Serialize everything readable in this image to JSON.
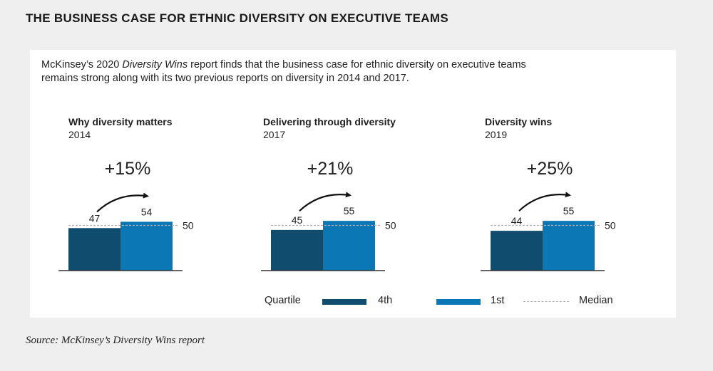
{
  "title": "THE BUSINESS CASE FOR ETHNIC DIVERSITY ON EXECUTIVE TEAMS",
  "intro": {
    "prefix": "McKinsey’s 2020 ",
    "report": "Diversity Wins",
    "suffix": " report finds that the business case for ethnic diversity on executive teams remains strong along with its two previous reports on diversity in 2014 and 2017."
  },
  "source": "Source: McKinsey’s Diversity Wins report",
  "legend": {
    "label": "Quartile",
    "q4": "4th",
    "q1": "1st",
    "median": "Median"
  },
  "colors": {
    "q4": "#0f4c6e",
    "q1": "#0b77b5",
    "median": "#b0b0b0",
    "axis": "#333333"
  },
  "chart_data": [
    {
      "type": "bar",
      "title": "Why diversity matters",
      "subtitle": "2014",
      "categories": [
        "4th",
        "1st"
      ],
      "values": [
        47,
        54
      ],
      "median": 50,
      "median_label": "50",
      "uplift": "+15%"
    },
    {
      "type": "bar",
      "title": "Delivering through diversity",
      "subtitle": "2017",
      "categories": [
        "4th",
        "1st"
      ],
      "values": [
        45,
        55
      ],
      "median": 50,
      "median_label": "50",
      "uplift": "+21%"
    },
    {
      "type": "bar",
      "title": "Diversity wins",
      "subtitle": "2019",
      "categories": [
        "4th",
        "1st"
      ],
      "values": [
        44,
        55
      ],
      "median": 50,
      "median_label": "50",
      "uplift": "+25%"
    }
  ]
}
